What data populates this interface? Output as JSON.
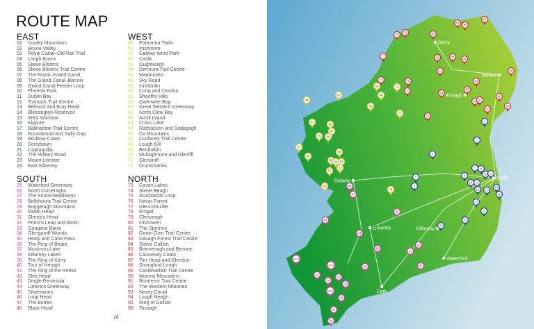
{
  "title": "ROUTE MAP",
  "page_number": "10",
  "colors": {
    "east": "#34449a",
    "west": "#e8d43a",
    "south": "#e2409b",
    "north": "#d8302d",
    "land_dark": "#1a9a3c",
    "land_light": "#9cc93a",
    "sea": "#6fb4d6"
  },
  "sections": [
    {
      "key": "east",
      "heading": "EAST",
      "items": [
        [
          "01",
          "Cooley Mountains"
        ],
        [
          "02",
          "Boyne Valley"
        ],
        [
          "03",
          "Royal Canal–Old Rail Trail"
        ],
        [
          "04",
          "Lough Boora"
        ],
        [
          "05",
          "Slieve Blooms"
        ],
        [
          "06",
          "Slieve Blooms Trail Centre"
        ],
        [
          "07",
          "The Royal–Grand Canal"
        ],
        [
          "08",
          "The Grand Canal–Barrow"
        ],
        [
          "09",
          "Grand Canal Feeder Loop"
        ],
        [
          "10",
          "Phoenix Park"
        ],
        [
          "11",
          "Dublin Bay"
        ],
        [
          "12",
          "Ticknock Trail Centre"
        ],
        [
          "13",
          "Belmont and Bray Head"
        ],
        [
          "14",
          "Blessington Reservoir"
        ],
        [
          "15",
          "West Wicklow"
        ],
        [
          "16",
          "Kippure"
        ],
        [
          "17",
          "Ballinastoe Trail Centre"
        ],
        [
          "18",
          "Roundwood and Sally Gap"
        ],
        [
          "19",
          "Wicklow Coast"
        ],
        [
          "20",
          "Derrybawn"
        ],
        [
          "21",
          "Lugnaquilla"
        ],
        [
          "22",
          "The Military Road"
        ],
        [
          "23",
          "Mount Leinster"
        ],
        [
          "24",
          "East Kilkenny"
        ]
      ]
    },
    {
      "key": "west",
      "heading": "WEST",
      "items": [
        [
          "49",
          "Portumna Trails"
        ],
        [
          "50",
          "Inishmore"
        ],
        [
          "51",
          "Galway Wind Park"
        ],
        [
          "52",
          "Casla"
        ],
        [
          "53",
          "Oughterard"
        ],
        [
          "54",
          "Derroura Trail Centre"
        ],
        [
          "55",
          "Maamturks"
        ],
        [
          "56",
          "Sky Road"
        ],
        [
          "57",
          "Inishbofin"
        ],
        [
          "58",
          "Cong and Clonbur"
        ],
        [
          "59",
          "Sheeffry Hills"
        ],
        [
          "60",
          "Owenwee Bog"
        ],
        [
          "61",
          "Great Western Greenway"
        ],
        [
          "62",
          "North Clew Bay"
        ],
        [
          "63",
          "Achill Island"
        ],
        [
          "64",
          "Cross Lake"
        ],
        [
          "65",
          "Rathlacken and Sralagagh"
        ],
        [
          "66",
          "Ox Mountains"
        ],
        [
          "67",
          "Coolaney Trail Centre"
        ],
        [
          "68",
          "Lough Gill"
        ],
        [
          "69",
          "Benbulbin"
        ],
        [
          "70",
          "Mullaghmore and Glenfiff"
        ],
        [
          "71",
          "Glenaniff"
        ],
        [
          "72",
          "Drumshanbo"
        ]
      ]
    },
    {
      "key": "south",
      "heading": "SOUTH",
      "items": [
        [
          "25",
          "Waterford Greenway"
        ],
        [
          "26",
          "North Comeraghs"
        ],
        [
          "27",
          "The Knockmealdowns"
        ],
        [
          "28",
          "Ballyhoura Trail Centre"
        ],
        [
          "29",
          "Boggeragh Mountains"
        ],
        [
          "30",
          "Mizen Head"
        ],
        [
          "31",
          "Sheep's Head"
        ],
        [
          "32",
          "Priest's Leap and Borlin"
        ],
        [
          "33",
          "Gougane Barra"
        ],
        [
          "34",
          "Glengarriff Woods"
        ],
        [
          "35",
          "Healy and Caha Pass"
        ],
        [
          "36",
          "The Ring of Beara"
        ],
        [
          "37",
          "Muckross Lake"
        ],
        [
          "38",
          "Killarney Lakes"
        ],
        [
          "39",
          "The Ring of Kerry"
        ],
        [
          "40",
          "Tour of Iveragh"
        ],
        [
          "41",
          "The Ring of the Reeks"
        ],
        [
          "42",
          "Slea Head"
        ],
        [
          "43",
          "Dingle Peninsula"
        ],
        [
          "44",
          "Limerick Greenway"
        ],
        [
          "45",
          "Silvermines"
        ],
        [
          "46",
          "Loop Head"
        ],
        [
          "47",
          "The Burren"
        ],
        [
          "48",
          "Black Head"
        ]
      ]
    },
    {
      "key": "north",
      "heading": "NORTH",
      "items": [
        [
          "73",
          "Cavan Lakes"
        ],
        [
          "74",
          "Slieve Beagh"
        ],
        [
          "75",
          "Scarplands Loop"
        ],
        [
          "76",
          "Navar Forest"
        ],
        [
          "77",
          "Glencolmcille"
        ],
        [
          "78",
          "Errigal"
        ],
        [
          "79",
          "Glenveagh"
        ],
        [
          "80",
          "Inishowen"
        ],
        [
          "81",
          "The Sperrins"
        ],
        [
          "82",
          "Gortin Glen Trail Centre"
        ],
        [
          "83",
          "Davagh Forest Trail Centre"
        ],
        [
          "84",
          "Slieve Gallion"
        ],
        [
          "85",
          "Binevenagh and Benone"
        ],
        [
          "86",
          "Causeway Coast"
        ],
        [
          "87",
          "Torr Head and Glendun"
        ],
        [
          "88",
          "Strangford Lough"
        ],
        [
          "89",
          "Castlewellan Trail Centre"
        ],
        [
          "90",
          "Mourne Mountains"
        ],
        [
          "91",
          "Rostrevor Trail Centre"
        ],
        [
          "92",
          "The Western Mournes"
        ],
        [
          "93",
          "Newry Canal"
        ],
        [
          "94",
          "Lough Neagh"
        ],
        [
          "95",
          "Ring of Gullion"
        ],
        [
          "96",
          "Tassagh"
        ]
      ]
    }
  ],
  "map": {
    "cities": [
      "Derry",
      "Belfast",
      "Armagh",
      "Galway",
      "Dublin",
      "Limerick",
      "Kilkenny",
      "Waterford",
      "Cork"
    ],
    "pins": [
      [
        "76",
        "north"
      ],
      [
        "79",
        "north"
      ],
      [
        "80",
        "north"
      ],
      [
        "86",
        "north"
      ],
      [
        "85",
        "north"
      ],
      [
        "87",
        "north"
      ],
      [
        "77",
        "north"
      ],
      [
        "81",
        "north"
      ],
      [
        "83",
        "north"
      ],
      [
        "84",
        "north"
      ],
      [
        "82",
        "north"
      ],
      [
        "88",
        "north"
      ],
      [
        "78",
        "north"
      ],
      [
        "69",
        "west"
      ],
      [
        "71",
        "west"
      ],
      [
        "76",
        "north"
      ],
      [
        "75",
        "north"
      ],
      [
        "94",
        "north"
      ],
      [
        "74",
        "north"
      ],
      [
        "95",
        "north"
      ],
      [
        "89",
        "north"
      ],
      [
        "93",
        "north"
      ],
      [
        "91",
        "north"
      ],
      [
        "90",
        "north"
      ],
      [
        "92",
        "north"
      ],
      [
        "65",
        "west"
      ],
      [
        "68",
        "west"
      ],
      [
        "64",
        "west"
      ],
      [
        "66",
        "west"
      ],
      [
        "72",
        "west"
      ],
      [
        "73",
        "north"
      ],
      [
        "1",
        "east"
      ],
      [
        "2",
        "east"
      ],
      [
        "3",
        "east"
      ],
      [
        "63",
        "west"
      ],
      [
        "62",
        "west"
      ],
      [
        "61",
        "west"
      ],
      [
        "59",
        "west"
      ],
      [
        "60",
        "west"
      ],
      [
        "57",
        "west"
      ],
      [
        "58",
        "west"
      ],
      [
        "56",
        "west"
      ],
      [
        "55",
        "west"
      ],
      [
        "54",
        "west"
      ],
      [
        "53",
        "west"
      ],
      [
        "52",
        "west"
      ],
      [
        "51",
        "west"
      ],
      [
        "4",
        "east"
      ],
      [
        "5",
        "east"
      ],
      [
        "6",
        "east"
      ],
      [
        "7",
        "east"
      ],
      [
        "8",
        "east"
      ],
      [
        "10",
        "east"
      ],
      [
        "11",
        "east"
      ],
      [
        "14",
        "east"
      ],
      [
        "15",
        "east"
      ],
      [
        "12",
        "east"
      ],
      [
        "16",
        "east"
      ],
      [
        "13",
        "east"
      ],
      [
        "19",
        "east"
      ],
      [
        "21",
        "east"
      ],
      [
        "22",
        "east"
      ],
      [
        "23",
        "east"
      ],
      [
        "24",
        "east"
      ],
      [
        "50",
        "west"
      ],
      [
        "48",
        "south"
      ],
      [
        "47",
        "south"
      ],
      [
        "49",
        "west"
      ],
      [
        "45",
        "south"
      ],
      [
        "46",
        "south"
      ],
      [
        "44",
        "south"
      ],
      [
        "28",
        "south"
      ],
      [
        "26",
        "south"
      ],
      [
        "27",
        "south"
      ],
      [
        "25",
        "south"
      ],
      [
        "42,43",
        "south"
      ],
      [
        "39,40",
        "south"
      ],
      [
        "29",
        "south"
      ],
      [
        "41",
        "south"
      ],
      [
        "37",
        "south"
      ],
      [
        "38",
        "south"
      ],
      [
        "33",
        "south"
      ],
      [
        "35,36",
        "south"
      ],
      [
        "32",
        "south"
      ],
      [
        "31",
        "south"
      ],
      [
        "30",
        "south"
      ]
    ]
  }
}
